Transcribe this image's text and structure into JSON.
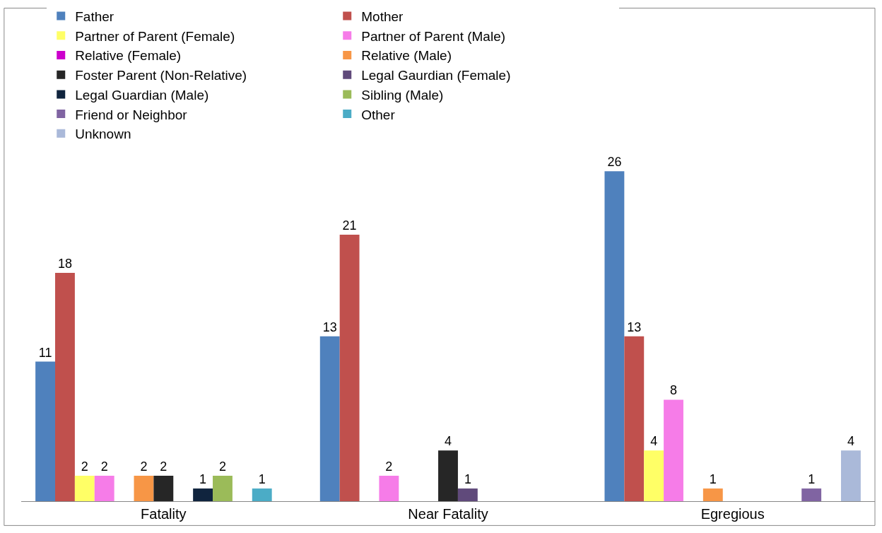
{
  "chart_data": {
    "type": "bar",
    "categories": [
      "Fatality",
      "Near Fatality",
      "Egregious"
    ],
    "series": [
      {
        "name": "Father",
        "color": "#4f81bd",
        "values": [
          11,
          13,
          26
        ]
      },
      {
        "name": "Mother",
        "color": "#c0504d",
        "values": [
          18,
          21,
          13
        ]
      },
      {
        "name": "Partner of Parent (Female)",
        "color": "#ffff66",
        "values": [
          2,
          null,
          4
        ]
      },
      {
        "name": "Partner of Parent (Male)",
        "color": "#f67ce8",
        "values": [
          2,
          2,
          8
        ]
      },
      {
        "name": "Relative (Female)",
        "color": "#cc00cc",
        "values": [
          null,
          null,
          null
        ]
      },
      {
        "name": "Relative (Male)",
        "color": "#f79646",
        "values": [
          2,
          null,
          1
        ]
      },
      {
        "name": "Foster Parent (Non-Relative)",
        "color": "#262626",
        "values": [
          2,
          4,
          null
        ]
      },
      {
        "name": "Legal Gaurdian (Female)",
        "color": "#604a7b",
        "values": [
          null,
          1,
          null
        ]
      },
      {
        "name": "Legal Guardian (Male)",
        "color": "#10243e",
        "values": [
          1,
          null,
          null
        ]
      },
      {
        "name": "Sibling (Male)",
        "color": "#9bbb59",
        "values": [
          2,
          null,
          null
        ]
      },
      {
        "name": "Friend or Neighbor",
        "color": "#8064a2",
        "values": [
          null,
          null,
          1
        ]
      },
      {
        "name": "Other",
        "color": "#4bacc6",
        "values": [
          1,
          null,
          null
        ]
      },
      {
        "name": "Unknown",
        "color": "#aab9d9",
        "values": [
          null,
          null,
          4
        ]
      }
    ],
    "data_labels": true,
    "legend": "top"
  }
}
